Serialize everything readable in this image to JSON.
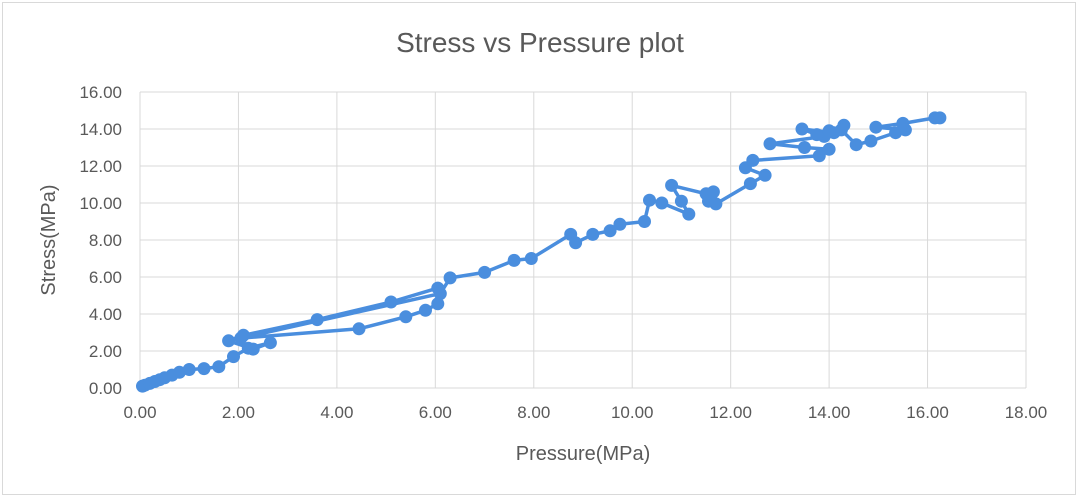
{
  "chart_data": {
    "type": "scatter",
    "title": "Stress vs Pressure plot",
    "xlabel": "Pressure(MPa)",
    "ylabel": "Stress(MPa)",
    "xlim": [
      0,
      18
    ],
    "ylim": [
      0,
      16
    ],
    "xticks": [
      "0.00",
      "2.00",
      "4.00",
      "6.00",
      "8.00",
      "10.00",
      "12.00",
      "14.00",
      "16.00",
      "18.00"
    ],
    "yticks": [
      "0.00",
      "2.00",
      "4.00",
      "6.00",
      "8.00",
      "10.00",
      "12.00",
      "14.00",
      "16.00"
    ],
    "grid": true,
    "legend": "none",
    "series_color": "#4a8ede",
    "series": [
      {
        "mode": "lines+markers",
        "points": [
          [
            0.05,
            0.1
          ],
          [
            0.1,
            0.15
          ],
          [
            0.2,
            0.25
          ],
          [
            0.3,
            0.35
          ],
          [
            0.4,
            0.45
          ],
          [
            0.5,
            0.55
          ],
          [
            0.65,
            0.7
          ],
          [
            0.8,
            0.85
          ],
          [
            1.0,
            1.0
          ],
          [
            1.3,
            1.05
          ],
          [
            1.6,
            1.15
          ],
          [
            1.9,
            1.7
          ],
          [
            2.2,
            2.15
          ],
          [
            2.65,
            2.45
          ],
          [
            2.3,
            2.1
          ],
          [
            1.8,
            2.55
          ],
          [
            2.1,
            2.85
          ],
          [
            3.6,
            3.7
          ],
          [
            5.1,
            4.65
          ],
          [
            6.05,
            5.4
          ],
          [
            6.05,
            4.55
          ],
          [
            5.8,
            4.2
          ],
          [
            5.4,
            3.85
          ],
          [
            4.45,
            3.2
          ],
          [
            2.05,
            2.7
          ],
          [
            6.1,
            5.1
          ],
          [
            6.3,
            5.95
          ],
          [
            7.0,
            6.25
          ],
          [
            7.6,
            6.9
          ],
          [
            7.95,
            7.0
          ],
          [
            8.75,
            8.3
          ],
          [
            8.85,
            7.85
          ],
          [
            9.2,
            8.3
          ],
          [
            9.55,
            8.5
          ],
          [
            9.75,
            8.85
          ],
          [
            10.25,
            9.0
          ],
          [
            10.35,
            10.15
          ],
          [
            10.6,
            10.0
          ],
          [
            11.15,
            9.4
          ],
          [
            11.0,
            10.1
          ],
          [
            10.8,
            10.95
          ],
          [
            11.5,
            10.5
          ],
          [
            11.65,
            10.6
          ],
          [
            11.55,
            10.1
          ],
          [
            11.7,
            9.95
          ],
          [
            12.4,
            11.05
          ],
          [
            12.7,
            11.5
          ],
          [
            12.3,
            11.9
          ],
          [
            12.45,
            12.3
          ],
          [
            13.8,
            12.55
          ],
          [
            14.0,
            12.9
          ],
          [
            13.5,
            13.0
          ],
          [
            12.8,
            13.2
          ],
          [
            13.9,
            13.6
          ],
          [
            14.3,
            14.2
          ],
          [
            14.1,
            13.8
          ],
          [
            13.45,
            14.0
          ],
          [
            13.75,
            13.7
          ],
          [
            14.0,
            13.9
          ],
          [
            14.25,
            13.95
          ],
          [
            14.55,
            13.15
          ],
          [
            14.85,
            13.35
          ],
          [
            15.35,
            13.8
          ],
          [
            15.55,
            13.95
          ],
          [
            14.95,
            14.1
          ],
          [
            15.5,
            14.3
          ],
          [
            16.15,
            14.6
          ],
          [
            16.25,
            14.6
          ]
        ]
      }
    ]
  }
}
